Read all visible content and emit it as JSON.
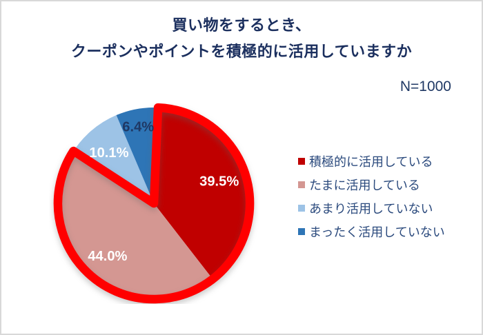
{
  "frame": {
    "background": "#FFFFFF",
    "border_color": "#D8D8D8"
  },
  "title": {
    "lines": [
      "買い物をするとき、",
      "クーポンやポイントを積極的に活用していますか"
    ],
    "color": "#1B2F5E"
  },
  "sample_size": "N=1000",
  "sample_size_color": "#1F3864",
  "chart_data": {
    "type": "pie",
    "title": "買い物をするとき、クーポンやポイントを積極的に活用していますか",
    "start_angle_deg": 0,
    "direction": "clockwise",
    "slices": [
      {
        "label": "積極的に活用している",
        "value": 39.5,
        "display": "39.5%",
        "color": "#C00000",
        "label_color": "#FFFFFF",
        "label_r": 0.72
      },
      {
        "label": "たまに活用している",
        "value": 44.0,
        "display": "44.0%",
        "color": "#D49792",
        "label_color": "#FFFFFF",
        "label_r": 0.73
      },
      {
        "label": "あまり活用していない",
        "value": 10.1,
        "display": "10.1%",
        "color": "#9DC3E6",
        "label_color": "#FFFFFF",
        "label_r": 0.71
      },
      {
        "label": "まったく活用していない",
        "value": 6.4,
        "display": "6.4%",
        "color": "#2E75B6",
        "label_color": "#1F3864",
        "label_r": 0.82
      }
    ],
    "highlight_outline": {
      "color": "#FF0000",
      "covers_slices": [
        0,
        1
      ]
    },
    "legend": {
      "position": "right",
      "text_color": "#2B4A7D"
    }
  }
}
